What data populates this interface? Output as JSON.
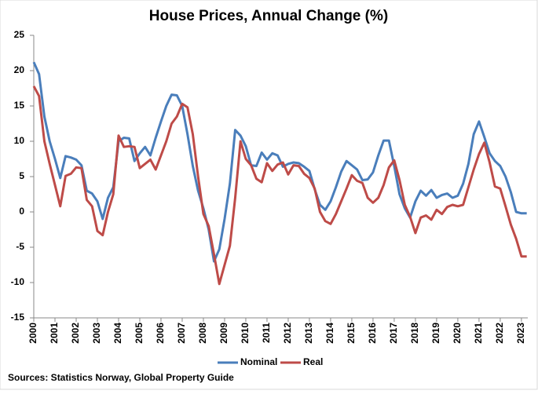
{
  "chart_data": {
    "type": "line",
    "title": "House Prices, Annual Change (%)",
    "source": "Sources: Statistics Norway, Global Property Guide",
    "x": [
      2000,
      2000.25,
      2000.5,
      2000.75,
      2001,
      2001.25,
      2001.5,
      2001.75,
      2002,
      2002.25,
      2002.5,
      2002.75,
      2003,
      2003.25,
      2003.5,
      2003.75,
      2004,
      2004.25,
      2004.5,
      2004.75,
      2005,
      2005.25,
      2005.5,
      2005.75,
      2006,
      2006.25,
      2006.5,
      2006.75,
      2007,
      2007.25,
      2007.5,
      2007.75,
      2008,
      2008.25,
      2008.5,
      2008.75,
      2009,
      2009.25,
      2009.5,
      2009.75,
      2010,
      2010.25,
      2010.5,
      2010.75,
      2011,
      2011.25,
      2011.5,
      2011.75,
      2012,
      2012.25,
      2012.5,
      2012.75,
      2013,
      2013.25,
      2013.5,
      2013.75,
      2014,
      2014.25,
      2014.5,
      2014.75,
      2015,
      2015.25,
      2015.5,
      2015.75,
      2016,
      2016.25,
      2016.5,
      2016.75,
      2017,
      2017.25,
      2017.5,
      2017.75,
      2018,
      2018.25,
      2018.5,
      2018.75,
      2019,
      2019.25,
      2019.5,
      2019.75,
      2020,
      2020.25,
      2020.5,
      2020.75,
      2021,
      2021.25,
      2021.5,
      2021.75,
      2022,
      2022.25,
      2022.5,
      2022.75,
      2023,
      2023.25
    ],
    "series": [
      {
        "name": "Nominal",
        "color": "#4a7ebb",
        "values": [
          21.2,
          19.5,
          13.5,
          10,
          7.5,
          4.8,
          7.9,
          7.7,
          7.4,
          6.6,
          3.0,
          2.6,
          1.5,
          -1.0,
          2.0,
          3.5,
          10.0,
          10.5,
          10.4,
          7.2,
          8.3,
          9.2,
          8.0,
          10.5,
          12.8,
          15.0,
          16.6,
          16.5,
          15.0,
          11.0,
          6.5,
          3.0,
          0.5,
          -2.5,
          -7.0,
          -5.3,
          -1.0,
          4.0,
          11.6,
          10.8,
          9.3,
          6.6,
          6.5,
          8.4,
          7.4,
          8.3,
          8.0,
          6.4,
          6.8,
          7.0,
          6.9,
          6.4,
          5.8,
          3.2,
          1.0,
          0.3,
          1.5,
          3.5,
          5.7,
          7.2,
          6.6,
          6.0,
          4.5,
          4.6,
          5.6,
          8.0,
          10.1,
          10.1,
          6.5,
          2.5,
          0.5,
          -0.8,
          1.5,
          3.0,
          2.3,
          3.1,
          2.0,
          2.4,
          2.6,
          2.0,
          2.3,
          4.0,
          6.8,
          11.0,
          12.8,
          10.6,
          8.3,
          7.2,
          6.5,
          5.0,
          2.8,
          0,
          -0.2,
          -0.2
        ]
      },
      {
        "name": "Real",
        "color": "#be4b48",
        "values": [
          17.8,
          16.4,
          10,
          6.8,
          3.8,
          0.8,
          5.1,
          5.4,
          6.3,
          6.2,
          1.7,
          0.8,
          -2.7,
          -3.3,
          0,
          2.5,
          10.8,
          9.2,
          9.3,
          9.2,
          6.2,
          6.8,
          7.4,
          6.0,
          8.0,
          10.0,
          12.5,
          13.5,
          15.3,
          14.8,
          11.0,
          5.0,
          -0.3,
          -2.0,
          -6.0,
          -10.2,
          -7.5,
          -4.8,
          2.0,
          10.0,
          7.5,
          6.6,
          4.7,
          4.2,
          6.9,
          5.8,
          6.7,
          7.0,
          5.3,
          6.6,
          6.5,
          5.4,
          4.8,
          3.3,
          0,
          -1.3,
          -1.7,
          -0.3,
          1.5,
          3.3,
          5.2,
          4.4,
          4.1,
          2.0,
          1.3,
          2.0,
          3.8,
          6.3,
          7.3,
          4.5,
          1.0,
          -0.7,
          -3.0,
          -0.8,
          -0.5,
          -1.1,
          0.3,
          -0.3,
          0.7,
          1.0,
          0.8,
          1.0,
          3.5,
          6.0,
          8.2,
          9.8,
          7.0,
          3.6,
          3.3,
          0.8,
          -1.8,
          -3.8,
          -6.3,
          -6.3
        ]
      }
    ],
    "xlim": [
      2000,
      2023.3
    ],
    "xticks": [
      2000,
      2001,
      2002,
      2003,
      2004,
      2005,
      2006,
      2007,
      2008,
      2009,
      2010,
      2011,
      2012,
      2013,
      2014,
      2015,
      2016,
      2017,
      2018,
      2019,
      2020,
      2021,
      2022,
      2023
    ],
    "ylim": [
      -15,
      25
    ],
    "yticks": [
      -15,
      -10,
      -5,
      0,
      5,
      10,
      15,
      20,
      25
    ],
    "grid": false
  }
}
